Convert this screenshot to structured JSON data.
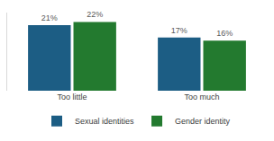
{
  "chart_data": {
    "type": "bar",
    "categories": [
      "Too little",
      "Too much"
    ],
    "series": [
      {
        "name": "Sexual identities",
        "color": "#1c5d84",
        "values": [
          21,
          17
        ],
        "value_labels": [
          "21%",
          "17%"
        ]
      },
      {
        "name": "Gender identity",
        "color": "#237a2f",
        "values": [
          22,
          16
        ],
        "value_labels": [
          "22%",
          "16%"
        ]
      }
    ],
    "ylim": [
      0,
      25
    ],
    "data_labels": true,
    "tick_labels": "x",
    "legend": "bottom",
    "grid": false
  }
}
